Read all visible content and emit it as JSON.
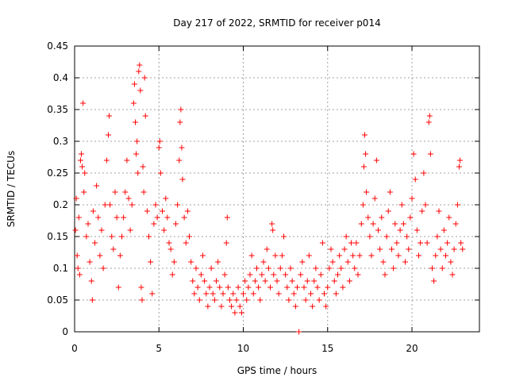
{
  "chart_data": {
    "type": "scatter",
    "title": "Day 217 of 2022, SRMTID for receiver p014",
    "xlabel": "GPS time / hours",
    "ylabel": "SRMTID / TECUs",
    "xlim": [
      0,
      24
    ],
    "ylim": [
      0,
      0.45
    ],
    "x_ticks": [
      0,
      5,
      10,
      15,
      20
    ],
    "x_tick_labels": [
      "0",
      "5",
      "10",
      "15",
      "20"
    ],
    "y_ticks": [
      0,
      0.05,
      0.1,
      0.15,
      0.2,
      0.25,
      0.3,
      0.35,
      0.4,
      0.45
    ],
    "y_tick_labels": [
      "0",
      "0.05",
      "0.1",
      "0.15",
      "0.2",
      "0.25",
      "0.3",
      "0.35",
      "0.4",
      "0.45"
    ],
    "grid": true,
    "marker": "+",
    "color": "#ff0000",
    "series": [
      {
        "name": "p014",
        "points": [
          [
            0.05,
            0.16
          ],
          [
            0.1,
            0.21
          ],
          [
            0.15,
            0.12
          ],
          [
            0.2,
            0.1
          ],
          [
            0.25,
            0.18
          ],
          [
            0.3,
            0.09
          ],
          [
            0.35,
            0.27
          ],
          [
            0.4,
            0.28
          ],
          [
            0.45,
            0.26
          ],
          [
            0.5,
            0.36
          ],
          [
            0.55,
            0.22
          ],
          [
            0.6,
            0.25
          ],
          [
            0.7,
            0.15
          ],
          [
            0.8,
            0.17
          ],
          [
            0.9,
            0.11
          ],
          [
            1.0,
            0.08
          ],
          [
            1.05,
            0.05
          ],
          [
            1.1,
            0.19
          ],
          [
            1.2,
            0.14
          ],
          [
            1.3,
            0.23
          ],
          [
            1.4,
            0.18
          ],
          [
            1.5,
            0.12
          ],
          [
            1.6,
            0.16
          ],
          [
            1.7,
            0.1
          ],
          [
            1.8,
            0.2
          ],
          [
            1.9,
            0.27
          ],
          [
            2.0,
            0.31
          ],
          [
            2.05,
            0.34
          ],
          [
            2.1,
            0.2
          ],
          [
            2.2,
            0.15
          ],
          [
            2.3,
            0.13
          ],
          [
            2.4,
            0.22
          ],
          [
            2.5,
            0.18
          ],
          [
            2.6,
            0.07
          ],
          [
            2.7,
            0.12
          ],
          [
            2.8,
            0.15
          ],
          [
            2.9,
            0.18
          ],
          [
            3.0,
            0.22
          ],
          [
            3.1,
            0.27
          ],
          [
            3.2,
            0.21
          ],
          [
            3.3,
            0.16
          ],
          [
            3.4,
            0.2
          ],
          [
            3.5,
            0.36
          ],
          [
            3.55,
            0.39
          ],
          [
            3.6,
            0.33
          ],
          [
            3.65,
            0.28
          ],
          [
            3.7,
            0.3
          ],
          [
            3.75,
            0.25
          ],
          [
            3.8,
            0.41
          ],
          [
            3.85,
            0.42
          ],
          [
            3.9,
            0.38
          ],
          [
            3.95,
            0.07
          ],
          [
            4.0,
            0.05
          ],
          [
            4.05,
            0.26
          ],
          [
            4.1,
            0.22
          ],
          [
            4.15,
            0.4
          ],
          [
            4.2,
            0.34
          ],
          [
            4.3,
            0.19
          ],
          [
            4.4,
            0.15
          ],
          [
            4.5,
            0.11
          ],
          [
            4.6,
            0.06
          ],
          [
            4.7,
            0.17
          ],
          [
            4.8,
            0.2
          ],
          [
            4.9,
            0.18
          ],
          [
            5.0,
            0.29
          ],
          [
            5.05,
            0.3
          ],
          [
            5.1,
            0.25
          ],
          [
            5.2,
            0.19
          ],
          [
            5.3,
            0.16
          ],
          [
            5.4,
            0.21
          ],
          [
            5.5,
            0.18
          ],
          [
            5.6,
            0.14
          ],
          [
            5.7,
            0.13
          ],
          [
            5.8,
            0.09
          ],
          [
            5.9,
            0.11
          ],
          [
            6.0,
            0.17
          ],
          [
            6.1,
            0.2
          ],
          [
            6.2,
            0.27
          ],
          [
            6.25,
            0.33
          ],
          [
            6.3,
            0.35
          ],
          [
            6.35,
            0.29
          ],
          [
            6.4,
            0.24
          ],
          [
            6.5,
            0.18
          ],
          [
            6.6,
            0.14
          ],
          [
            6.7,
            0.19
          ],
          [
            6.8,
            0.15
          ],
          [
            6.9,
            0.11
          ],
          [
            7.0,
            0.08
          ],
          [
            7.1,
            0.06
          ],
          [
            7.2,
            0.1
          ],
          [
            7.3,
            0.07
          ],
          [
            7.4,
            0.05
          ],
          [
            7.5,
            0.09
          ],
          [
            7.6,
            0.12
          ],
          [
            7.7,
            0.08
          ],
          [
            7.8,
            0.06
          ],
          [
            7.9,
            0.04
          ],
          [
            8.0,
            0.07
          ],
          [
            8.1,
            0.1
          ],
          [
            8.2,
            0.06
          ],
          [
            8.3,
            0.05
          ],
          [
            8.4,
            0.08
          ],
          [
            8.5,
            0.11
          ],
          [
            8.6,
            0.07
          ],
          [
            8.7,
            0.04
          ],
          [
            8.8,
            0.06
          ],
          [
            8.9,
            0.09
          ],
          [
            9.0,
            0.14
          ],
          [
            9.05,
            0.18
          ],
          [
            9.1,
            0.07
          ],
          [
            9.2,
            0.05
          ],
          [
            9.3,
            0.04
          ],
          [
            9.4,
            0.06
          ],
          [
            9.5,
            0.03
          ],
          [
            9.6,
            0.05
          ],
          [
            9.7,
            0.07
          ],
          [
            9.8,
            0.04
          ],
          [
            9.9,
            0.03
          ],
          [
            10.0,
            0.06
          ],
          [
            10.1,
            0.08
          ],
          [
            10.2,
            0.05
          ],
          [
            10.3,
            0.07
          ],
          [
            10.4,
            0.09
          ],
          [
            10.5,
            0.12
          ],
          [
            10.6,
            0.06
          ],
          [
            10.7,
            0.08
          ],
          [
            10.8,
            0.1
          ],
          [
            10.9,
            0.07
          ],
          [
            11.0,
            0.05
          ],
          [
            11.1,
            0.09
          ],
          [
            11.2,
            0.11
          ],
          [
            11.3,
            0.08
          ],
          [
            11.4,
            0.13
          ],
          [
            11.5,
            0.1
          ],
          [
            11.6,
            0.07
          ],
          [
            11.7,
            0.17
          ],
          [
            11.75,
            0.16
          ],
          [
            11.8,
            0.09
          ],
          [
            11.9,
            0.12
          ],
          [
            12.0,
            0.08
          ],
          [
            12.1,
            0.06
          ],
          [
            12.2,
            0.1
          ],
          [
            12.3,
            0.12
          ],
          [
            12.4,
            0.15
          ],
          [
            12.5,
            0.09
          ],
          [
            12.6,
            0.07
          ],
          [
            12.7,
            0.05
          ],
          [
            12.8,
            0.1
          ],
          [
            12.9,
            0.08
          ],
          [
            13.0,
            0.06
          ],
          [
            13.1,
            0.04
          ],
          [
            13.2,
            0.07
          ],
          [
            13.3,
            0.0
          ],
          [
            13.4,
            0.09
          ],
          [
            13.5,
            0.11
          ],
          [
            13.6,
            0.07
          ],
          [
            13.7,
            0.05
          ],
          [
            13.8,
            0.08
          ],
          [
            13.9,
            0.12
          ],
          [
            14.0,
            0.06
          ],
          [
            14.1,
            0.04
          ],
          [
            14.2,
            0.08
          ],
          [
            14.3,
            0.1
          ],
          [
            14.4,
            0.07
          ],
          [
            14.5,
            0.05
          ],
          [
            14.6,
            0.09
          ],
          [
            14.7,
            0.14
          ],
          [
            14.8,
            0.06
          ],
          [
            14.9,
            0.04
          ],
          [
            15.0,
            0.07
          ],
          [
            15.1,
            0.1
          ],
          [
            15.2,
            0.13
          ],
          [
            15.3,
            0.11
          ],
          [
            15.4,
            0.08
          ],
          [
            15.5,
            0.06
          ],
          [
            15.6,
            0.09
          ],
          [
            15.7,
            0.12
          ],
          [
            15.8,
            0.1
          ],
          [
            15.9,
            0.07
          ],
          [
            16.0,
            0.13
          ],
          [
            16.1,
            0.15
          ],
          [
            16.2,
            0.11
          ],
          [
            16.3,
            0.08
          ],
          [
            16.4,
            0.14
          ],
          [
            16.5,
            0.12
          ],
          [
            16.6,
            0.1
          ],
          [
            16.7,
            0.14
          ],
          [
            16.8,
            0.09
          ],
          [
            16.9,
            0.12
          ],
          [
            17.0,
            0.17
          ],
          [
            17.1,
            0.2
          ],
          [
            17.15,
            0.26
          ],
          [
            17.2,
            0.31
          ],
          [
            17.25,
            0.28
          ],
          [
            17.3,
            0.22
          ],
          [
            17.4,
            0.18
          ],
          [
            17.5,
            0.15
          ],
          [
            17.6,
            0.12
          ],
          [
            17.7,
            0.17
          ],
          [
            17.8,
            0.21
          ],
          [
            17.9,
            0.27
          ],
          [
            18.0,
            0.16
          ],
          [
            18.1,
            0.13
          ],
          [
            18.2,
            0.18
          ],
          [
            18.3,
            0.11
          ],
          [
            18.4,
            0.09
          ],
          [
            18.5,
            0.15
          ],
          [
            18.6,
            0.19
          ],
          [
            18.7,
            0.22
          ],
          [
            18.8,
            0.13
          ],
          [
            18.9,
            0.1
          ],
          [
            19.0,
            0.17
          ],
          [
            19.1,
            0.14
          ],
          [
            19.2,
            0.12
          ],
          [
            19.3,
            0.16
          ],
          [
            19.4,
            0.2
          ],
          [
            19.5,
            0.17
          ],
          [
            19.6,
            0.11
          ],
          [
            19.7,
            0.15
          ],
          [
            19.8,
            0.13
          ],
          [
            19.9,
            0.18
          ],
          [
            20.0,
            0.21
          ],
          [
            20.1,
            0.28
          ],
          [
            20.2,
            0.24
          ],
          [
            20.3,
            0.16
          ],
          [
            20.4,
            0.12
          ],
          [
            20.5,
            0.14
          ],
          [
            20.6,
            0.19
          ],
          [
            20.7,
            0.25
          ],
          [
            20.8,
            0.2
          ],
          [
            20.9,
            0.14
          ],
          [
            21.0,
            0.33
          ],
          [
            21.05,
            0.34
          ],
          [
            21.1,
            0.28
          ],
          [
            21.2,
            0.1
          ],
          [
            21.3,
            0.08
          ],
          [
            21.4,
            0.12
          ],
          [
            21.5,
            0.15
          ],
          [
            21.6,
            0.19
          ],
          [
            21.7,
            0.13
          ],
          [
            21.8,
            0.1
          ],
          [
            21.9,
            0.16
          ],
          [
            22.0,
            0.12
          ],
          [
            22.1,
            0.14
          ],
          [
            22.2,
            0.18
          ],
          [
            22.3,
            0.11
          ],
          [
            22.4,
            0.09
          ],
          [
            22.5,
            0.13
          ],
          [
            22.6,
            0.17
          ],
          [
            22.7,
            0.2
          ],
          [
            22.8,
            0.26
          ],
          [
            22.85,
            0.27
          ],
          [
            22.9,
            0.14
          ],
          [
            23.0,
            0.13
          ]
        ]
      }
    ]
  }
}
